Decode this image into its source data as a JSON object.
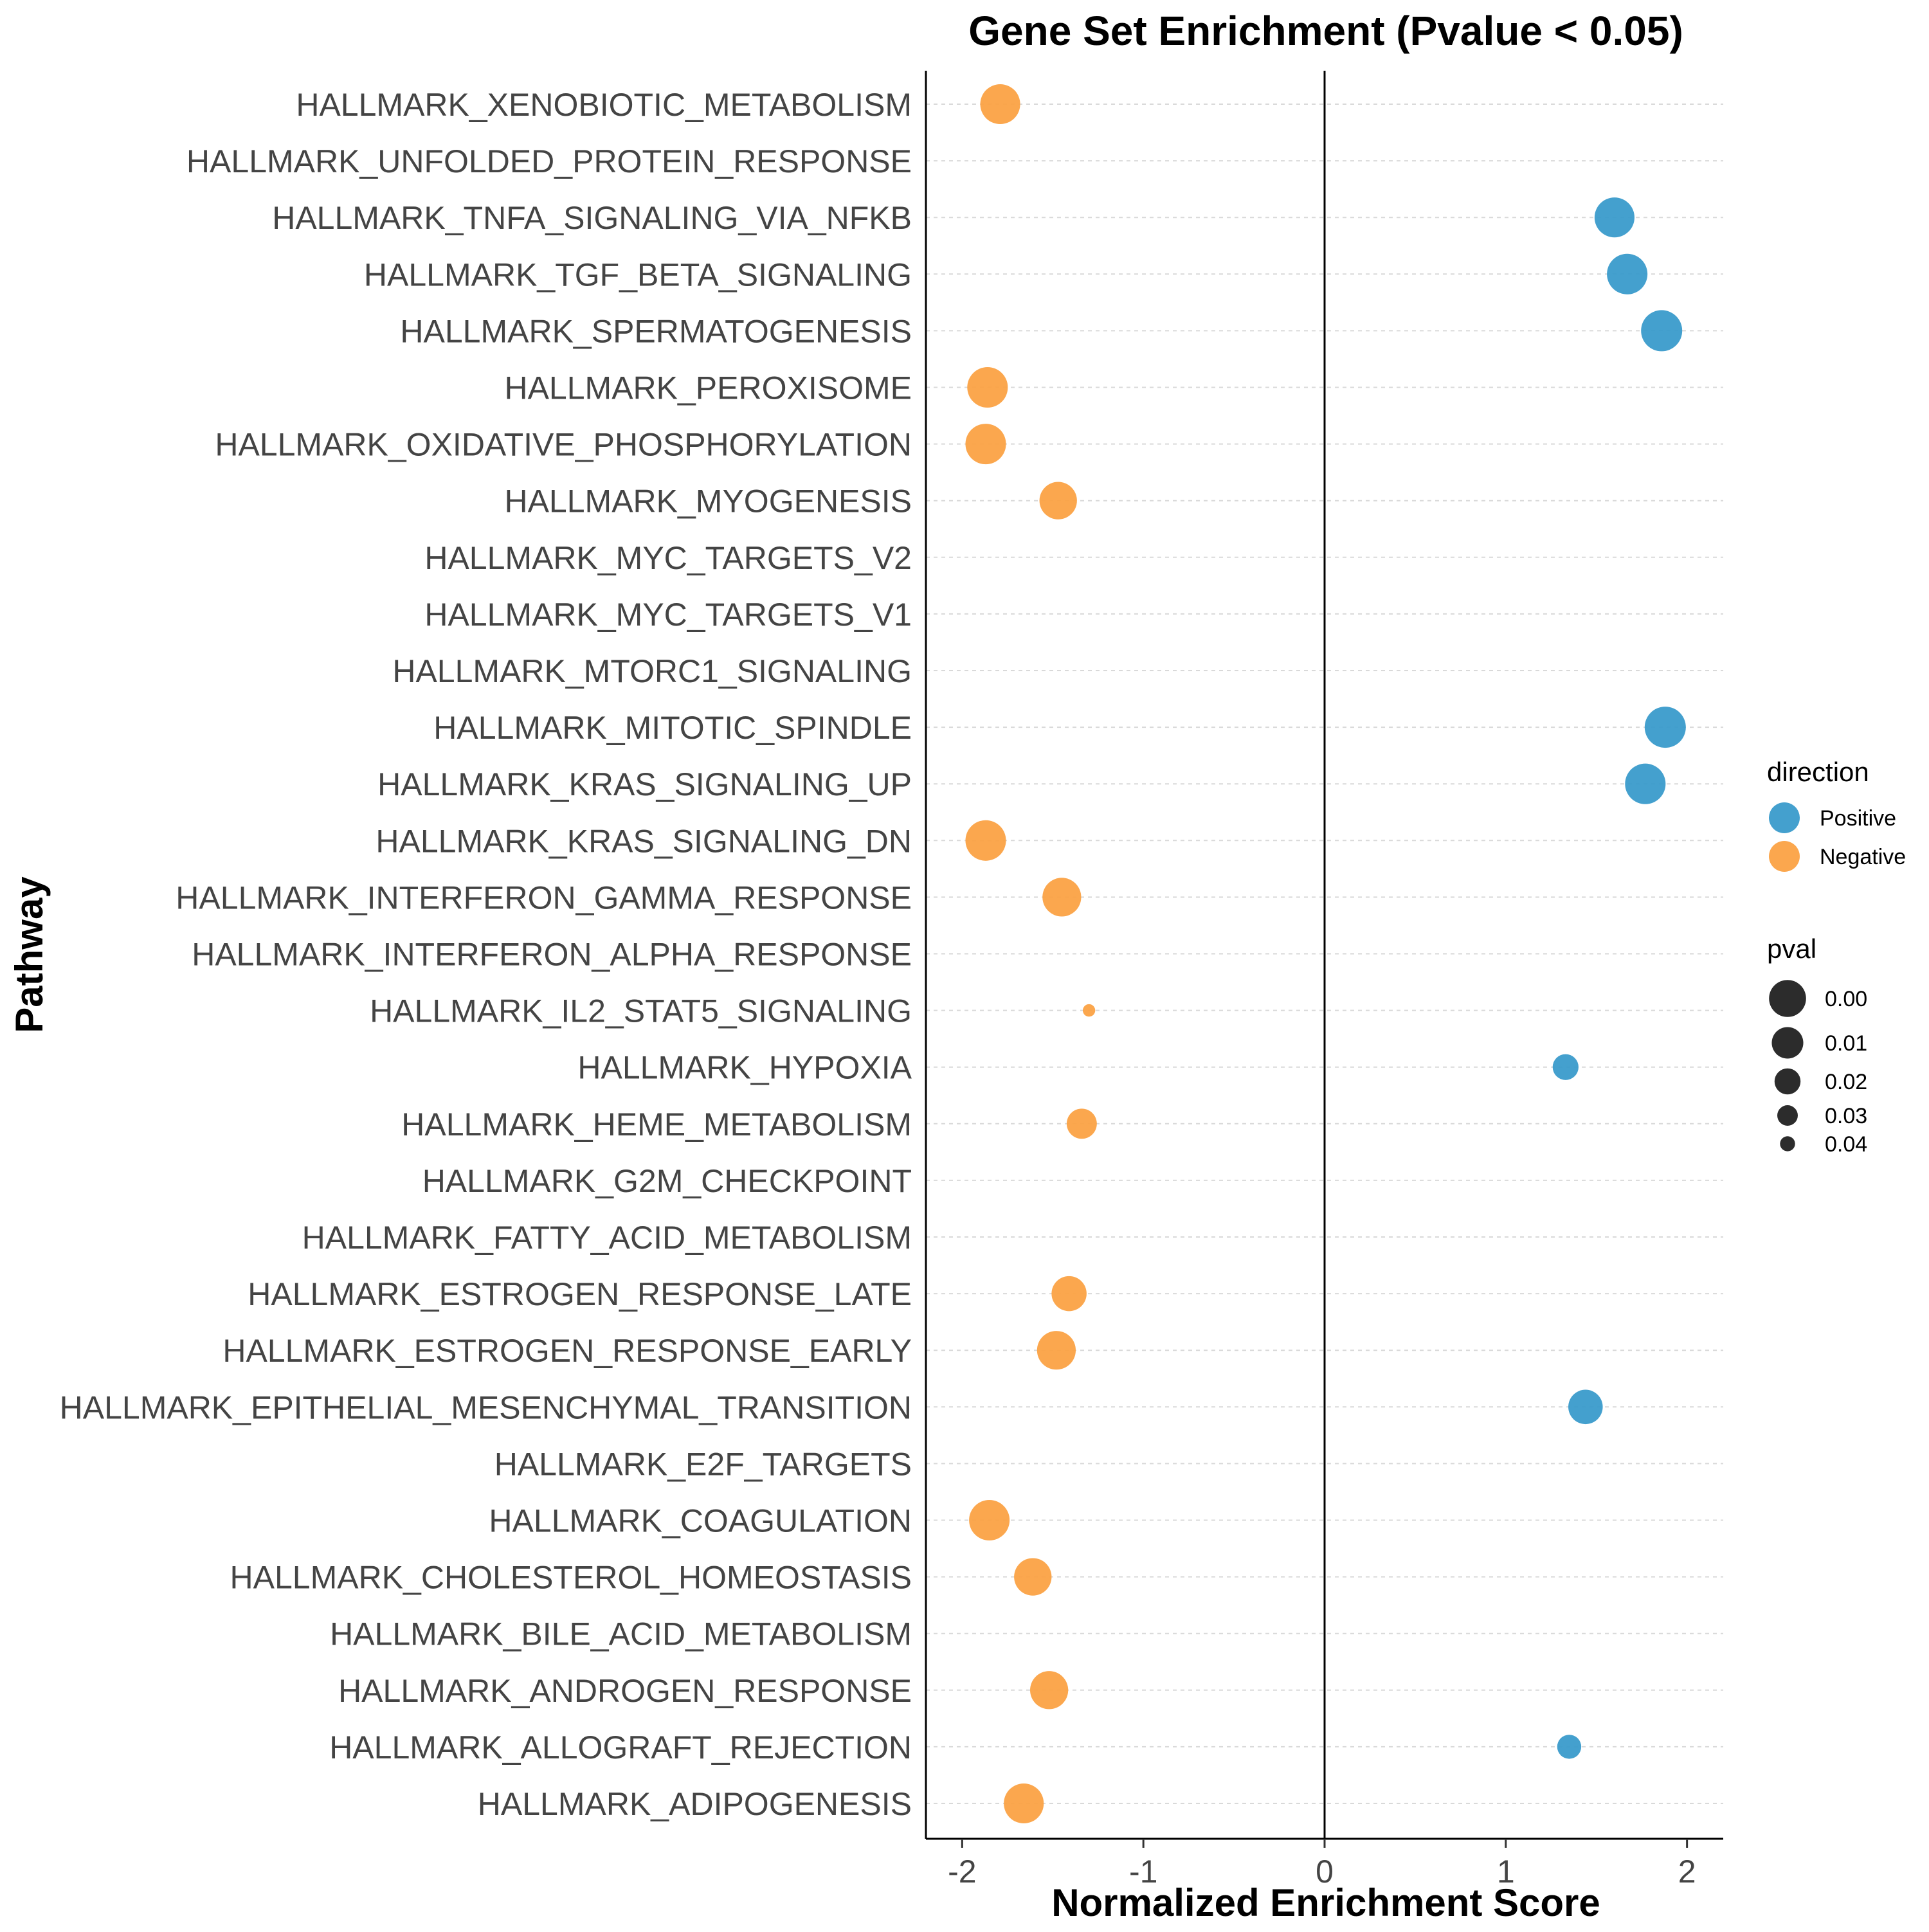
{
  "chart_data": {
    "type": "scatter",
    "title": "Gene Set Enrichment (Pvalue < 0.05)",
    "xlabel": "Normalized Enrichment Score",
    "ylabel": "Pathway",
    "xlim": [
      -2.2,
      2.2
    ],
    "xticks": [
      -2,
      -1,
      0,
      1,
      2
    ],
    "xtick_labels": [
      "-2",
      "-1",
      "0",
      "1",
      "2"
    ],
    "reference_line_x": 0,
    "grid": "horizontal dashed",
    "legend_position": "right",
    "colors": {
      "Positive": "#3A9BCB",
      "Negative": "#FBA245"
    },
    "legend": {
      "direction": {
        "title": "direction",
        "entries": [
          "Positive",
          "Negative"
        ]
      },
      "pval": {
        "title": "pval",
        "entries": [
          "0.00",
          "0.01",
          "0.02",
          "0.03",
          "0.04"
        ],
        "values": [
          0.0,
          0.01,
          0.02,
          0.03,
          0.04
        ]
      }
    },
    "categories": [
      "HALLMARK_XENOBIOTIC_METABOLISM",
      "HALLMARK_UNFOLDED_PROTEIN_RESPONSE",
      "HALLMARK_TNFA_SIGNALING_VIA_NFKB",
      "HALLMARK_TGF_BETA_SIGNALING",
      "HALLMARK_SPERMATOGENESIS",
      "HALLMARK_PEROXISOME",
      "HALLMARK_OXIDATIVE_PHOSPHORYLATION",
      "HALLMARK_MYOGENESIS",
      "HALLMARK_MYC_TARGETS_V2",
      "HALLMARK_MYC_TARGETS_V1",
      "HALLMARK_MTORC1_SIGNALING",
      "HALLMARK_MITOTIC_SPINDLE",
      "HALLMARK_KRAS_SIGNALING_UP",
      "HALLMARK_KRAS_SIGNALING_DN",
      "HALLMARK_INTERFERON_GAMMA_RESPONSE",
      "HALLMARK_INTERFERON_ALPHA_RESPONSE",
      "HALLMARK_IL2_STAT5_SIGNALING",
      "HALLMARK_HYPOXIA",
      "HALLMARK_HEME_METABOLISM",
      "HALLMARK_G2M_CHECKPOINT",
      "HALLMARK_FATTY_ACID_METABOLISM",
      "HALLMARK_ESTROGEN_RESPONSE_LATE",
      "HALLMARK_ESTROGEN_RESPONSE_EARLY",
      "HALLMARK_EPITHELIAL_MESENCHYMAL_TRANSITION",
      "HALLMARK_E2F_TARGETS",
      "HALLMARK_COAGULATION",
      "HALLMARK_CHOLESTEROL_HOMEOSTASIS",
      "HALLMARK_BILE_ACID_METABOLISM",
      "HALLMARK_ANDROGEN_RESPONSE",
      "HALLMARK_ALLOGRAFT_REJECTION",
      "HALLMARK_ADIPOGENESIS"
    ],
    "points": [
      {
        "pathway": "HALLMARK_XENOBIOTIC_METABOLISM",
        "nes": -1.79,
        "pval": 0.002,
        "direction": "Negative"
      },
      {
        "pathway": "HALLMARK_TNFA_SIGNALING_VIA_NFKB",
        "nes": 1.6,
        "pval": 0.002,
        "direction": "Positive"
      },
      {
        "pathway": "HALLMARK_TGF_BETA_SIGNALING",
        "nes": 1.67,
        "pval": 0.001,
        "direction": "Positive"
      },
      {
        "pathway": "HALLMARK_SPERMATOGENESIS",
        "nes": 1.86,
        "pval": 0.0,
        "direction": "Positive"
      },
      {
        "pathway": "HALLMARK_PEROXISOME",
        "nes": -1.86,
        "pval": 0.001,
        "direction": "Negative"
      },
      {
        "pathway": "HALLMARK_OXIDATIVE_PHOSPHORYLATION",
        "nes": -1.87,
        "pval": 0.001,
        "direction": "Negative"
      },
      {
        "pathway": "HALLMARK_MYOGENESIS",
        "nes": -1.47,
        "pval": 0.006,
        "direction": "Negative"
      },
      {
        "pathway": "HALLMARK_MITOTIC_SPINDLE",
        "nes": 1.88,
        "pval": 0.0,
        "direction": "Positive"
      },
      {
        "pathway": "HALLMARK_KRAS_SIGNALING_UP",
        "nes": 1.77,
        "pval": 0.001,
        "direction": "Positive"
      },
      {
        "pathway": "HALLMARK_KRAS_SIGNALING_DN",
        "nes": -1.87,
        "pval": 0.001,
        "direction": "Negative"
      },
      {
        "pathway": "HALLMARK_INTERFERON_GAMMA_RESPONSE",
        "nes": -1.45,
        "pval": 0.004,
        "direction": "Negative"
      },
      {
        "pathway": "HALLMARK_IL2_STAT5_SIGNALING",
        "nes": -1.3,
        "pval": 0.047,
        "direction": "Negative"
      },
      {
        "pathway": "HALLMARK_HYPOXIA",
        "nes": 1.33,
        "pval": 0.025,
        "direction": "Positive"
      },
      {
        "pathway": "HALLMARK_HEME_METABOLISM",
        "nes": -1.34,
        "pval": 0.018,
        "direction": "Negative"
      },
      {
        "pathway": "HALLMARK_ESTROGEN_RESPONSE_LATE",
        "nes": -1.41,
        "pval": 0.01,
        "direction": "Negative"
      },
      {
        "pathway": "HALLMARK_ESTROGEN_RESPONSE_EARLY",
        "nes": -1.48,
        "pval": 0.004,
        "direction": "Negative"
      },
      {
        "pathway": "HALLMARK_EPITHELIAL_MESENCHYMAL_TRANSITION",
        "nes": 1.44,
        "pval": 0.011,
        "direction": "Positive"
      },
      {
        "pathway": "HALLMARK_COAGULATION",
        "nes": -1.85,
        "pval": 0.001,
        "direction": "Negative"
      },
      {
        "pathway": "HALLMARK_CHOLESTEROL_HOMEOSTASIS",
        "nes": -1.61,
        "pval": 0.006,
        "direction": "Negative"
      },
      {
        "pathway": "HALLMARK_ANDROGEN_RESPONSE",
        "nes": -1.52,
        "pval": 0.005,
        "direction": "Negative"
      },
      {
        "pathway": "HALLMARK_ALLOGRAFT_REJECTION",
        "nes": 1.35,
        "pval": 0.028,
        "direction": "Positive"
      },
      {
        "pathway": "HALLMARK_ADIPOGENESIS",
        "nes": -1.66,
        "pval": 0.002,
        "direction": "Negative"
      }
    ]
  }
}
